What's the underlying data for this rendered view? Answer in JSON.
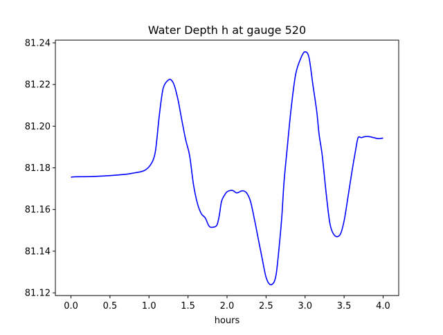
{
  "chart_data": {
    "type": "line",
    "title": "Water Depth h at gauge 520",
    "xlabel": "hours",
    "ylabel": "",
    "xlim": [
      -0.2,
      4.2
    ],
    "ylim": [
      81.1187,
      81.2413
    ],
    "xticks": [
      0.0,
      0.5,
      1.0,
      1.5,
      2.0,
      2.5,
      3.0,
      3.5,
      4.0
    ],
    "xtick_labels": [
      "0.0",
      "0.5",
      "1.0",
      "1.5",
      "2.0",
      "2.5",
      "3.0",
      "3.5",
      "4.0"
    ],
    "yticks": [
      81.12,
      81.14,
      81.16,
      81.18,
      81.2,
      81.22,
      81.24
    ],
    "ytick_labels": [
      "81.12",
      "81.14",
      "81.16",
      "81.18",
      "81.20",
      "81.22",
      "81.24"
    ],
    "grid": false,
    "legend": false,
    "series": [
      {
        "color": "#0000ff",
        "x": [
          0.0,
          0.05,
          0.25,
          0.5,
          0.7,
          0.8,
          0.9,
          0.95,
          1.0,
          1.05,
          1.08,
          1.1,
          1.13,
          1.17,
          1.2,
          1.25,
          1.28,
          1.32,
          1.37,
          1.42,
          1.47,
          1.52,
          1.57,
          1.62,
          1.67,
          1.72,
          1.77,
          1.82,
          1.87,
          1.9,
          1.93,
          1.97,
          2.0,
          2.05,
          2.08,
          2.12,
          2.15,
          2.2,
          2.25,
          2.3,
          2.35,
          2.4,
          2.45,
          2.5,
          2.55,
          2.6,
          2.63,
          2.66,
          2.7,
          2.73,
          2.77,
          2.82,
          2.88,
          2.95,
          3.0,
          3.05,
          3.1,
          3.15,
          3.18,
          3.22,
          3.27,
          3.32,
          3.38,
          3.45,
          3.5,
          3.55,
          3.6,
          3.65,
          3.68,
          3.72,
          3.77,
          3.82,
          3.88,
          3.94,
          4.0
        ],
        "y": [
          81.1755,
          81.1757,
          81.1758,
          81.1763,
          81.1769,
          81.1775,
          81.1782,
          81.1789,
          81.1805,
          81.1835,
          81.1875,
          81.1935,
          81.2045,
          81.216,
          81.22,
          81.2222,
          81.2223,
          81.22,
          81.213,
          81.203,
          81.1935,
          81.186,
          81.172,
          81.163,
          81.158,
          81.156,
          81.152,
          81.1515,
          81.1525,
          81.157,
          81.164,
          81.167,
          81.1685,
          81.1692,
          81.169,
          81.168,
          81.1683,
          81.169,
          81.168,
          81.164,
          81.1555,
          81.146,
          81.1365,
          81.1275,
          81.124,
          81.125,
          81.129,
          81.139,
          81.1555,
          81.173,
          81.189,
          81.208,
          81.225,
          81.233,
          81.2357,
          81.233,
          81.22,
          81.207,
          81.196,
          81.186,
          81.168,
          81.153,
          81.1475,
          81.148,
          81.1545,
          81.166,
          81.178,
          81.189,
          81.1945,
          81.1945,
          81.195,
          81.195,
          81.1945,
          81.194,
          81.1943
        ]
      }
    ]
  }
}
